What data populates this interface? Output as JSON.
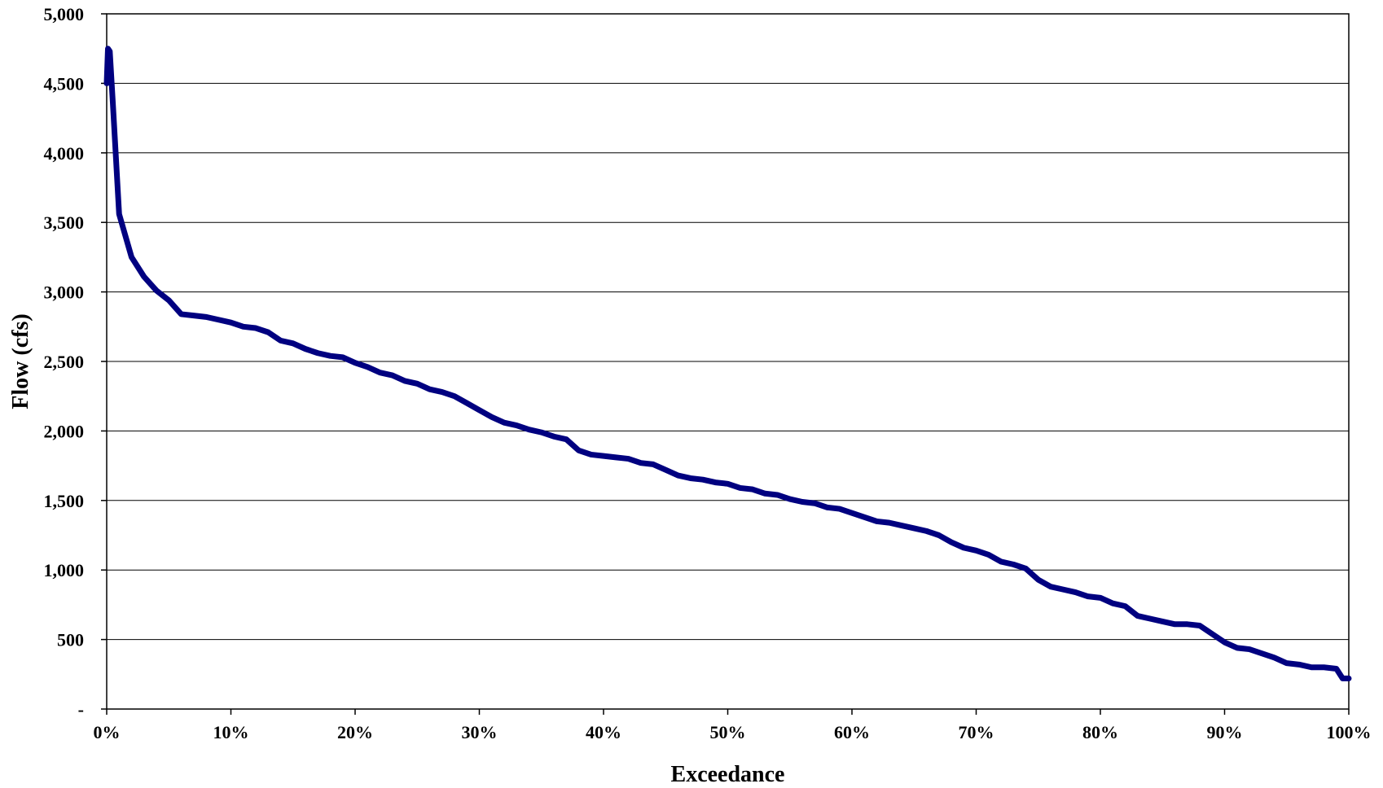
{
  "chart_data": {
    "type": "line",
    "title": "",
    "xlabel": "Exceedance",
    "ylabel": "Flow (cfs)",
    "xlim": [
      0,
      100
    ],
    "ylim": [
      0,
      5000
    ],
    "grid": "horizontal",
    "legend": "none",
    "colors": {
      "line": "#000080",
      "grid": "#000000",
      "frame": "#000000"
    },
    "x_ticks": [
      {
        "value": 0,
        "label": "0%"
      },
      {
        "value": 10,
        "label": "10%"
      },
      {
        "value": 20,
        "label": "20%"
      },
      {
        "value": 30,
        "label": "30%"
      },
      {
        "value": 40,
        "label": "40%"
      },
      {
        "value": 50,
        "label": "50%"
      },
      {
        "value": 60,
        "label": "60%"
      },
      {
        "value": 70,
        "label": "70%"
      },
      {
        "value": 80,
        "label": "80%"
      },
      {
        "value": 90,
        "label": "90%"
      },
      {
        "value": 100,
        "label": "100%"
      }
    ],
    "y_ticks": [
      {
        "value": 0,
        "label": "-"
      },
      {
        "value": 500,
        "label": "500"
      },
      {
        "value": 1000,
        "label": "1,000"
      },
      {
        "value": 1500,
        "label": "1,500"
      },
      {
        "value": 2000,
        "label": "2,000"
      },
      {
        "value": 2500,
        "label": "2,500"
      },
      {
        "value": 3000,
        "label": "3,000"
      },
      {
        "value": 3500,
        "label": "3,500"
      },
      {
        "value": 4000,
        "label": "4,000"
      },
      {
        "value": 4500,
        "label": "4,500"
      },
      {
        "value": 5000,
        "label": "5,000"
      }
    ],
    "series": [
      {
        "x": [
          0,
          0.1,
          0.25,
          0.5,
          1,
          2,
          3,
          4,
          5,
          6,
          7,
          8,
          9,
          10,
          11,
          12,
          13,
          14,
          15,
          16,
          17,
          18,
          19,
          20,
          21,
          22,
          23,
          24,
          25,
          26,
          27,
          28,
          29,
          30,
          31,
          32,
          33,
          34,
          35,
          36,
          37,
          38,
          39,
          40,
          41,
          42,
          43,
          44,
          45,
          46,
          47,
          48,
          49,
          50,
          51,
          52,
          53,
          54,
          55,
          56,
          57,
          58,
          59,
          60,
          61,
          62,
          63,
          64,
          65,
          66,
          67,
          68,
          69,
          70,
          71,
          72,
          73,
          74,
          75,
          76,
          77,
          78,
          79,
          80,
          81,
          82,
          83,
          84,
          85,
          86,
          87,
          88,
          89,
          90,
          91,
          92,
          93,
          94,
          95,
          96,
          97,
          98,
          99,
          99.5,
          100
        ],
        "y": [
          4500,
          4750,
          4730,
          4350,
          3560,
          3250,
          3110,
          3010,
          2940,
          2840,
          2830,
          2820,
          2800,
          2780,
          2750,
          2740,
          2710,
          2650,
          2630,
          2590,
          2560,
          2540,
          2530,
          2490,
          2460,
          2420,
          2400,
          2360,
          2340,
          2300,
          2280,
          2250,
          2200,
          2150,
          2100,
          2060,
          2040,
          2010,
          1990,
          1960,
          1940,
          1860,
          1830,
          1820,
          1810,
          1800,
          1770,
          1760,
          1720,
          1680,
          1660,
          1650,
          1630,
          1620,
          1590,
          1580,
          1550,
          1540,
          1510,
          1490,
          1480,
          1450,
          1440,
          1410,
          1380,
          1350,
          1340,
          1320,
          1300,
          1280,
          1250,
          1200,
          1160,
          1140,
          1110,
          1060,
          1040,
          1010,
          930,
          880,
          860,
          840,
          810,
          800,
          760,
          740,
          670,
          650,
          630,
          610,
          610,
          600,
          540,
          480,
          440,
          430,
          400,
          370,
          330,
          320,
          300,
          300,
          290,
          220,
          220
        ]
      }
    ]
  }
}
